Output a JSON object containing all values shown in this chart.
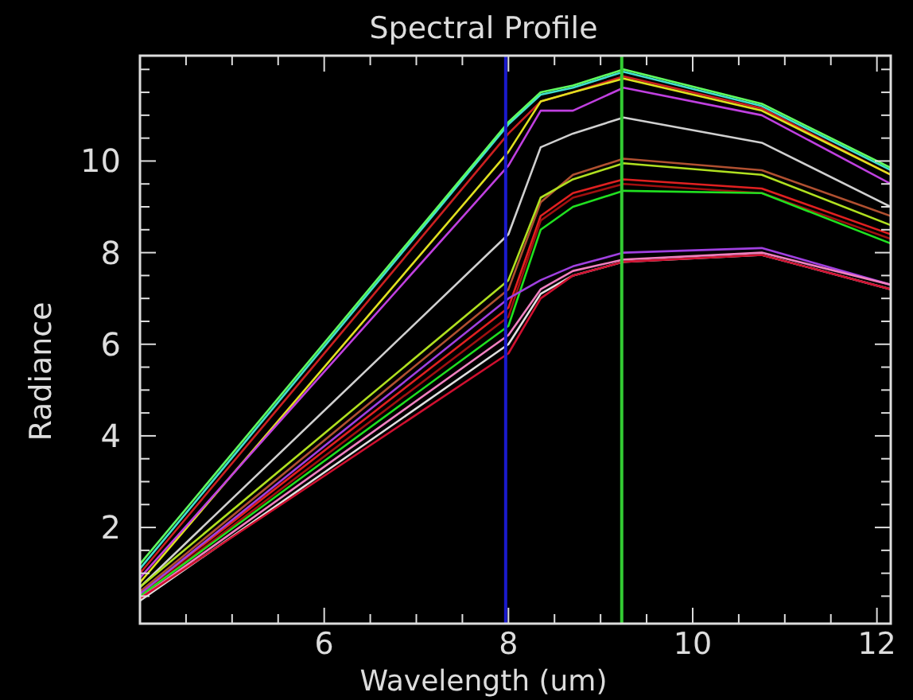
{
  "chart_data": {
    "type": "line",
    "title": "Spectral Profile",
    "xlabel": "Wavelength (um)",
    "ylabel": "Radiance",
    "x": [
      4.0,
      8.0,
      8.35,
      8.7,
      9.25,
      10.75,
      12.15
    ],
    "xlim": [
      4,
      12.15
    ],
    "ylim": [
      -0.1,
      12.3
    ],
    "xticks": [
      {
        "value": 4.5,
        "label": null
      },
      {
        "value": 5,
        "label": null
      },
      {
        "value": 5.5,
        "label": null
      },
      6,
      {
        "value": 6.5,
        "label": null
      },
      {
        "value": 7,
        "label": null
      },
      {
        "value": 7.5,
        "label": null
      },
      8,
      {
        "value": 8.5,
        "label": null
      },
      {
        "value": 9,
        "label": null
      },
      {
        "value": 9.5,
        "label": null
      },
      10,
      {
        "value": 10.5,
        "label": null
      },
      {
        "value": 11,
        "label": null
      },
      {
        "value": 11.5,
        "label": null
      },
      12
    ],
    "yticks": [
      {
        "value": 0.5,
        "label": null
      },
      {
        "value": 1,
        "label": null
      },
      {
        "value": 1.5,
        "label": null
      },
      2,
      {
        "value": 2.5,
        "label": null
      },
      {
        "value": 3,
        "label": null
      },
      {
        "value": 3.5,
        "label": null
      },
      4,
      {
        "value": 4.5,
        "label": null
      },
      {
        "value": 5,
        "label": null
      },
      {
        "value": 5.5,
        "label": null
      },
      6,
      {
        "value": 6.5,
        "label": null
      },
      {
        "value": 7,
        "label": null
      },
      {
        "value": 7.5,
        "label": null
      },
      8,
      {
        "value": 8.5,
        "label": null
      },
      {
        "value": 9,
        "label": null
      },
      {
        "value": 9.5,
        "label": null
      },
      10,
      {
        "value": 10.5,
        "label": null
      },
      {
        "value": 11,
        "label": null
      },
      {
        "value": 11.5,
        "label": null
      },
      {
        "value": 12,
        "label": null
      }
    ],
    "grid": false,
    "marker": "none",
    "line_style": "solid",
    "ref_lines": [
      {
        "axis": "x",
        "value": 7.97,
        "color": "#1a1acc"
      },
      {
        "axis": "x",
        "value": 9.23,
        "color": "#33cc33"
      }
    ],
    "series": [
      {
        "color": "#40e0d0",
        "values": [
          1.1,
          10.8,
          11.45,
          11.6,
          11.95,
          11.2,
          9.8
        ]
      },
      {
        "color": "#60ff60",
        "values": [
          1.2,
          10.85,
          11.5,
          11.65,
          12.0,
          11.25,
          9.85
        ]
      },
      {
        "color": "#cc2020",
        "values": [
          1.0,
          10.6,
          11.3,
          11.5,
          11.85,
          11.15,
          9.7
        ]
      },
      {
        "color": "#e0e020",
        "values": [
          0.8,
          10.2,
          11.3,
          11.5,
          11.8,
          11.1,
          9.7
        ]
      },
      {
        "color": "#c040e0",
        "values": [
          0.9,
          9.9,
          11.1,
          11.1,
          11.6,
          11.0,
          9.5
        ]
      },
      {
        "color": "#d0d0d0",
        "values": [
          0.7,
          8.4,
          10.3,
          10.6,
          10.95,
          10.4,
          9.0
        ]
      },
      {
        "color": "#b05030",
        "values": [
          0.6,
          7.2,
          9.1,
          9.7,
          10.05,
          9.8,
          8.8
        ]
      },
      {
        "color": "#b0e020",
        "values": [
          0.7,
          7.4,
          9.2,
          9.6,
          9.95,
          9.7,
          8.6
        ]
      },
      {
        "color": "#e02020",
        "values": [
          0.55,
          6.8,
          8.8,
          9.3,
          9.6,
          9.4,
          8.4
        ]
      },
      {
        "color": "#a01010",
        "values": [
          0.5,
          6.6,
          8.7,
          9.2,
          9.5,
          9.3,
          8.3
        ]
      },
      {
        "color": "#20e020",
        "values": [
          0.5,
          6.4,
          8.5,
          9.0,
          9.35,
          9.3,
          8.2
        ]
      },
      {
        "color": "#a040e0",
        "values": [
          0.55,
          7.0,
          7.4,
          7.7,
          8.0,
          8.1,
          7.3
        ]
      },
      {
        "color": "#f080c0",
        "values": [
          0.45,
          6.2,
          7.2,
          7.6,
          7.85,
          8.0,
          7.3
        ]
      },
      {
        "color": "#e0e0e0",
        "values": [
          0.4,
          6.0,
          7.1,
          7.5,
          7.8,
          7.95,
          7.2
        ]
      },
      {
        "color": "#d01030",
        "values": [
          0.45,
          5.8,
          7.0,
          7.5,
          7.8,
          7.95,
          7.2
        ]
      }
    ]
  }
}
